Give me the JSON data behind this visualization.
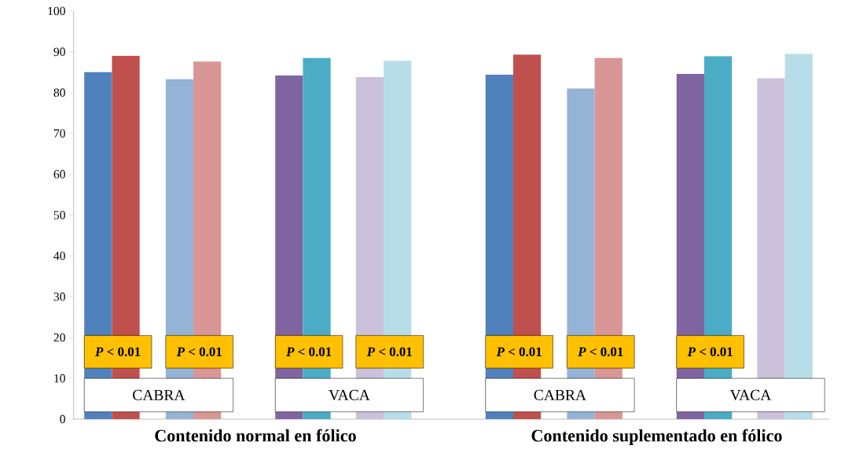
{
  "chart_data": {
    "type": "bar",
    "categories": [
      "Contenido normal en fólico",
      "Contenido suplementado en fólico"
    ],
    "series": [
      {
        "color": "#4f81bd",
        "values": [
          85,
          84.4
        ]
      },
      {
        "color": "#c0504d",
        "values": [
          89,
          89.3
        ]
      },
      {
        "color": "#95b3d7",
        "values": [
          83.3,
          81
        ]
      },
      {
        "color": "#d99694",
        "values": [
          87.6,
          88.5
        ]
      },
      {
        "color": "#8064a2",
        "values": [
          84.2,
          84.6
        ]
      },
      {
        "color": "#4bacc6",
        "values": [
          88.5,
          88.9
        ]
      },
      {
        "color": "#ccc1da",
        "values": [
          83.8,
          83.5
        ]
      },
      {
        "color": "#b7dee8",
        "values": [
          87.8,
          89.5
        ]
      }
    ],
    "ylim": [
      0,
      100
    ],
    "yticks": [
      0,
      10,
      20,
      30,
      40,
      50,
      60,
      70,
      80,
      90,
      100
    ],
    "annotations": [
      "*P* < 0.01",
      "*P* < 0.01",
      "*P* < 0.01",
      "*P* < 0.01",
      "*P* < 0.01",
      "*P* < 0.01",
      "*P* < 0.01",
      "CABRA",
      "VACA",
      "CABRA",
      "VACA"
    ]
  }
}
